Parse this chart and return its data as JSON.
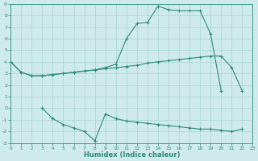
{
  "line1_x": [
    0,
    1,
    2,
    3,
    4,
    5,
    6,
    7,
    8,
    9,
    10,
    11,
    12,
    13,
    14,
    15,
    16,
    17,
    18,
    19,
    20
  ],
  "line1_y": [
    4.0,
    3.1,
    2.8,
    2.8,
    2.9,
    3.0,
    3.1,
    3.2,
    3.3,
    3.5,
    3.8,
    6.0,
    7.3,
    7.4,
    8.8,
    8.5,
    8.4,
    8.4,
    8.4,
    6.4,
    1.5
  ],
  "line2_x": [
    0,
    1,
    2,
    3,
    4,
    5,
    6,
    7,
    8,
    9,
    10,
    11,
    12,
    13,
    14,
    15,
    16,
    17,
    18,
    19,
    20,
    21,
    22
  ],
  "line2_y": [
    4.0,
    3.1,
    2.8,
    2.8,
    2.9,
    3.0,
    3.1,
    3.2,
    3.3,
    3.4,
    3.5,
    3.6,
    3.7,
    3.9,
    4.0,
    4.1,
    4.2,
    4.3,
    4.4,
    4.5,
    4.5,
    3.5,
    1.5
  ],
  "line3_x": [
    3,
    4,
    5,
    6,
    7,
    8,
    9,
    10,
    11,
    12,
    13,
    14,
    15,
    16,
    17,
    18,
    19,
    20,
    21,
    22
  ],
  "line3_y": [
    0.0,
    -0.9,
    -1.4,
    -1.7,
    -2.0,
    -2.8,
    -0.5,
    -0.9,
    -1.1,
    -1.2,
    -1.3,
    -1.4,
    -1.5,
    -1.6,
    -1.7,
    -1.8,
    -1.8,
    -1.9,
    -2.0,
    -1.8
  ],
  "line_color": "#2d8b7a",
  "bg_color": "#ceeaea",
  "grid_color": "#a8d4d4",
  "xlabel": "Humidex (Indice chaleur)",
  "xlim": [
    0,
    23
  ],
  "ylim": [
    -3,
    9
  ],
  "yticks": [
    9,
    8,
    7,
    6,
    5,
    4,
    3,
    2,
    1,
    0,
    -1,
    -2,
    -3
  ],
  "xticks": [
    0,
    1,
    2,
    3,
    4,
    5,
    6,
    7,
    8,
    9,
    10,
    11,
    12,
    13,
    14,
    15,
    16,
    17,
    18,
    19,
    20,
    21,
    22,
    23
  ]
}
